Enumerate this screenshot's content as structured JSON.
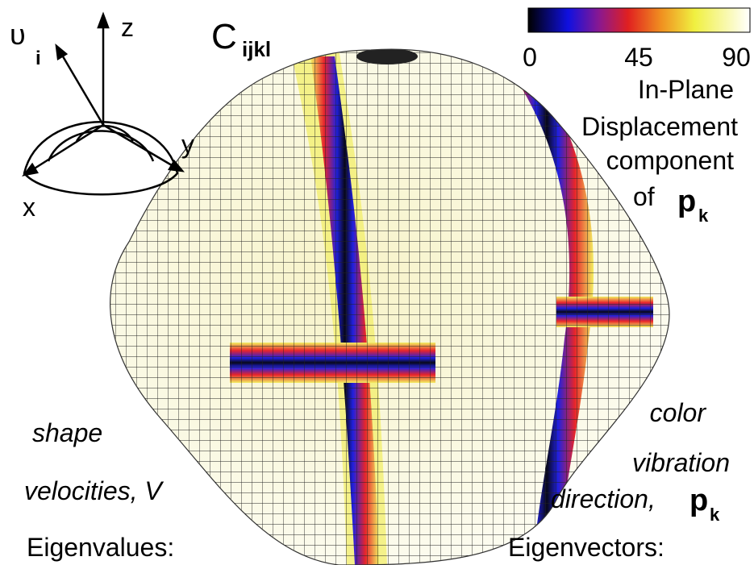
{
  "axes": {
    "vector": "υ",
    "vector_sub": "i",
    "z": "z",
    "y": "y",
    "x": "x"
  },
  "tensor": {
    "symbol": "C",
    "sub": "ijkl"
  },
  "colorbar": {
    "ticks": [
      0,
      45,
      90
    ],
    "label_lines": [
      "In-Plane",
      "Displacement",
      "component"
    ],
    "of": "of",
    "p": "p",
    "sub": "k"
  },
  "left_caption": {
    "lines": [
      "shape",
      "velocities, V",
      "Eigenvalues:"
    ]
  },
  "right_caption": {
    "lines": [
      "color",
      "vibration"
    ],
    "direction": "direction,",
    "p": "p",
    "sub": "k",
    "last": "Eigenvectors:"
  }
}
